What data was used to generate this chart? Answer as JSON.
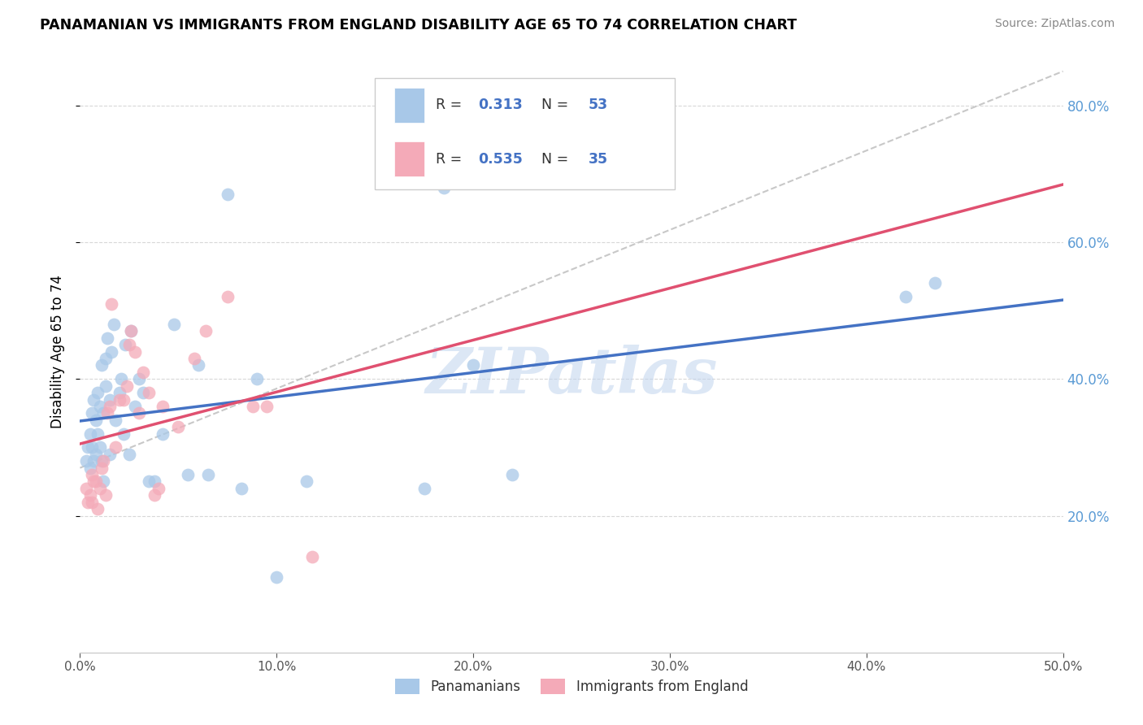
{
  "title": "PANAMANIAN VS IMMIGRANTS FROM ENGLAND DISABILITY AGE 65 TO 74 CORRELATION CHART",
  "source": "Source: ZipAtlas.com",
  "ylabel": "Disability Age 65 to 74",
  "xlim": [
    0.0,
    0.5
  ],
  "ylim": [
    0.0,
    0.88
  ],
  "legend_blue_R": "0.313",
  "legend_blue_N": "53",
  "legend_pink_R": "0.535",
  "legend_pink_N": "35",
  "legend_label_blue": "Panamanians",
  "legend_label_pink": "Immigrants from England",
  "blue_color": "#a8c8e8",
  "pink_color": "#f4aab8",
  "blue_line_color": "#4472c4",
  "pink_line_color": "#e05070",
  "dash_color": "#c8c8c8",
  "watermark": "ZIPatlas",
  "blue_points_x": [
    0.003,
    0.004,
    0.005,
    0.005,
    0.006,
    0.006,
    0.007,
    0.007,
    0.008,
    0.008,
    0.009,
    0.009,
    0.01,
    0.01,
    0.011,
    0.011,
    0.012,
    0.012,
    0.013,
    0.013,
    0.014,
    0.015,
    0.015,
    0.016,
    0.017,
    0.018,
    0.02,
    0.021,
    0.022,
    0.023,
    0.025,
    0.026,
    0.028,
    0.03,
    0.032,
    0.035,
    0.038,
    0.042,
    0.048,
    0.055,
    0.06,
    0.065,
    0.075,
    0.082,
    0.09,
    0.1,
    0.115,
    0.175,
    0.185,
    0.2,
    0.22,
    0.42,
    0.435
  ],
  "blue_points_y": [
    0.28,
    0.3,
    0.27,
    0.32,
    0.3,
    0.35,
    0.28,
    0.37,
    0.29,
    0.34,
    0.38,
    0.32,
    0.3,
    0.36,
    0.42,
    0.28,
    0.35,
    0.25,
    0.39,
    0.43,
    0.46,
    0.37,
    0.29,
    0.44,
    0.48,
    0.34,
    0.38,
    0.4,
    0.32,
    0.45,
    0.29,
    0.47,
    0.36,
    0.4,
    0.38,
    0.25,
    0.25,
    0.32,
    0.48,
    0.26,
    0.42,
    0.26,
    0.67,
    0.24,
    0.4,
    0.11,
    0.25,
    0.24,
    0.68,
    0.42,
    0.26,
    0.52,
    0.54
  ],
  "pink_points_x": [
    0.003,
    0.004,
    0.005,
    0.006,
    0.006,
    0.007,
    0.008,
    0.009,
    0.01,
    0.011,
    0.012,
    0.013,
    0.014,
    0.015,
    0.016,
    0.018,
    0.02,
    0.022,
    0.024,
    0.025,
    0.026,
    0.028,
    0.03,
    0.032,
    0.035,
    0.038,
    0.04,
    0.042,
    0.05,
    0.058,
    0.064,
    0.075,
    0.088,
    0.095,
    0.118
  ],
  "pink_points_y": [
    0.24,
    0.22,
    0.23,
    0.26,
    0.22,
    0.25,
    0.25,
    0.21,
    0.24,
    0.27,
    0.28,
    0.23,
    0.35,
    0.36,
    0.51,
    0.3,
    0.37,
    0.37,
    0.39,
    0.45,
    0.47,
    0.44,
    0.35,
    0.41,
    0.38,
    0.23,
    0.24,
    0.36,
    0.33,
    0.43,
    0.47,
    0.52,
    0.36,
    0.36,
    0.14
  ]
}
